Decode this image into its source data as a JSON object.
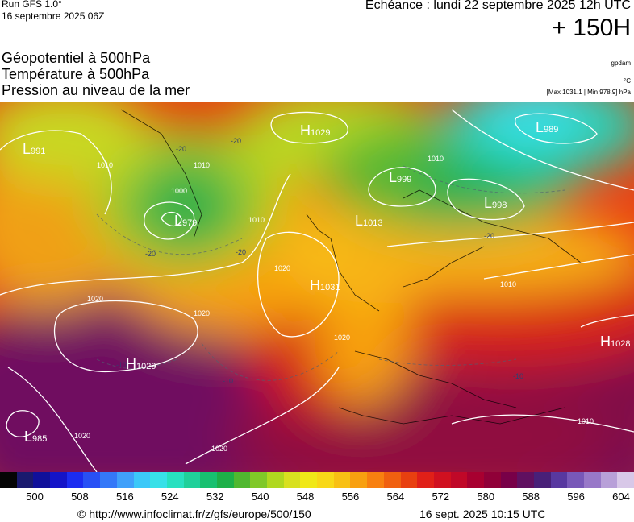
{
  "header": {
    "run": "Run GFS 1.0°",
    "run_date": "16 septembre 2025 06Z",
    "echeance": "Echéance : lundi 22 septembre 2025 12h UTC",
    "lead_time": "+ 150H"
  },
  "titles": {
    "line1": "Géopotentiel à 500hPa",
    "line2": "Température à 500hPa",
    "line3": "Pression au niveau de la mer"
  },
  "units": {
    "geopotential": "gpdam",
    "temperature": "°C",
    "minmax": "[Max 1031.1 | Min 978.9] hPa"
  },
  "pressure_centers": [
    {
      "kind": "H",
      "value": "1029"
    },
    {
      "kind": "L",
      "value": "991"
    },
    {
      "kind": "L",
      "value": "979"
    },
    {
      "kind": "H",
      "value": "1031"
    },
    {
      "kind": "L",
      "value": "1013"
    },
    {
      "kind": "L",
      "value": "999"
    },
    {
      "kind": "L",
      "value": "998"
    },
    {
      "kind": "L",
      "value": "989"
    },
    {
      "kind": "H",
      "value": "1029"
    },
    {
      "kind": "H",
      "value": "1028"
    },
    {
      "kind": "L",
      "value": "985"
    }
  ],
  "isobar_labels": [
    "1010",
    "1010",
    "1000",
    "1010",
    "1020",
    "1020",
    "1020",
    "1020",
    "1020",
    "1010",
    "1010",
    "1020",
    "1010"
  ],
  "temperature_labels": [
    "-20",
    "-20",
    "-20",
    "-20",
    "-20",
    "-10",
    "-10",
    "-10"
  ],
  "colorbar": {
    "labels": [
      "500",
      "508",
      "516",
      "524",
      "532",
      "540",
      "548",
      "556",
      "564",
      "572",
      "580",
      "588",
      "596",
      "604"
    ],
    "colors": [
      "#050505",
      "#1a1a6e",
      "#10109a",
      "#1414c8",
      "#1c2cf0",
      "#2850f5",
      "#3478f8",
      "#40a0fa",
      "#3cc8f8",
      "#38e0e8",
      "#28e0c0",
      "#20d09a",
      "#18c070",
      "#1eb048",
      "#50b830",
      "#80c828",
      "#b0d820",
      "#d8e020",
      "#f0e818",
      "#f8d818",
      "#f8c014",
      "#f8a010",
      "#f88010",
      "#f06010",
      "#e84010",
      "#e02018",
      "#d01020",
      "#c00828",
      "#a80030",
      "#900038",
      "#780048",
      "#601060",
      "#482078",
      "#5838a0",
      "#7858b8",
      "#9878c8",
      "#b8a0d8",
      "#d8c8e8"
    ],
    "highlight_color": "#cc0000"
  },
  "footer": {
    "url": "© http://www.infoclimat.fr/z/gfs/europe/500/150",
    "timestamp": "16 sept. 2025 10:15 UTC"
  }
}
